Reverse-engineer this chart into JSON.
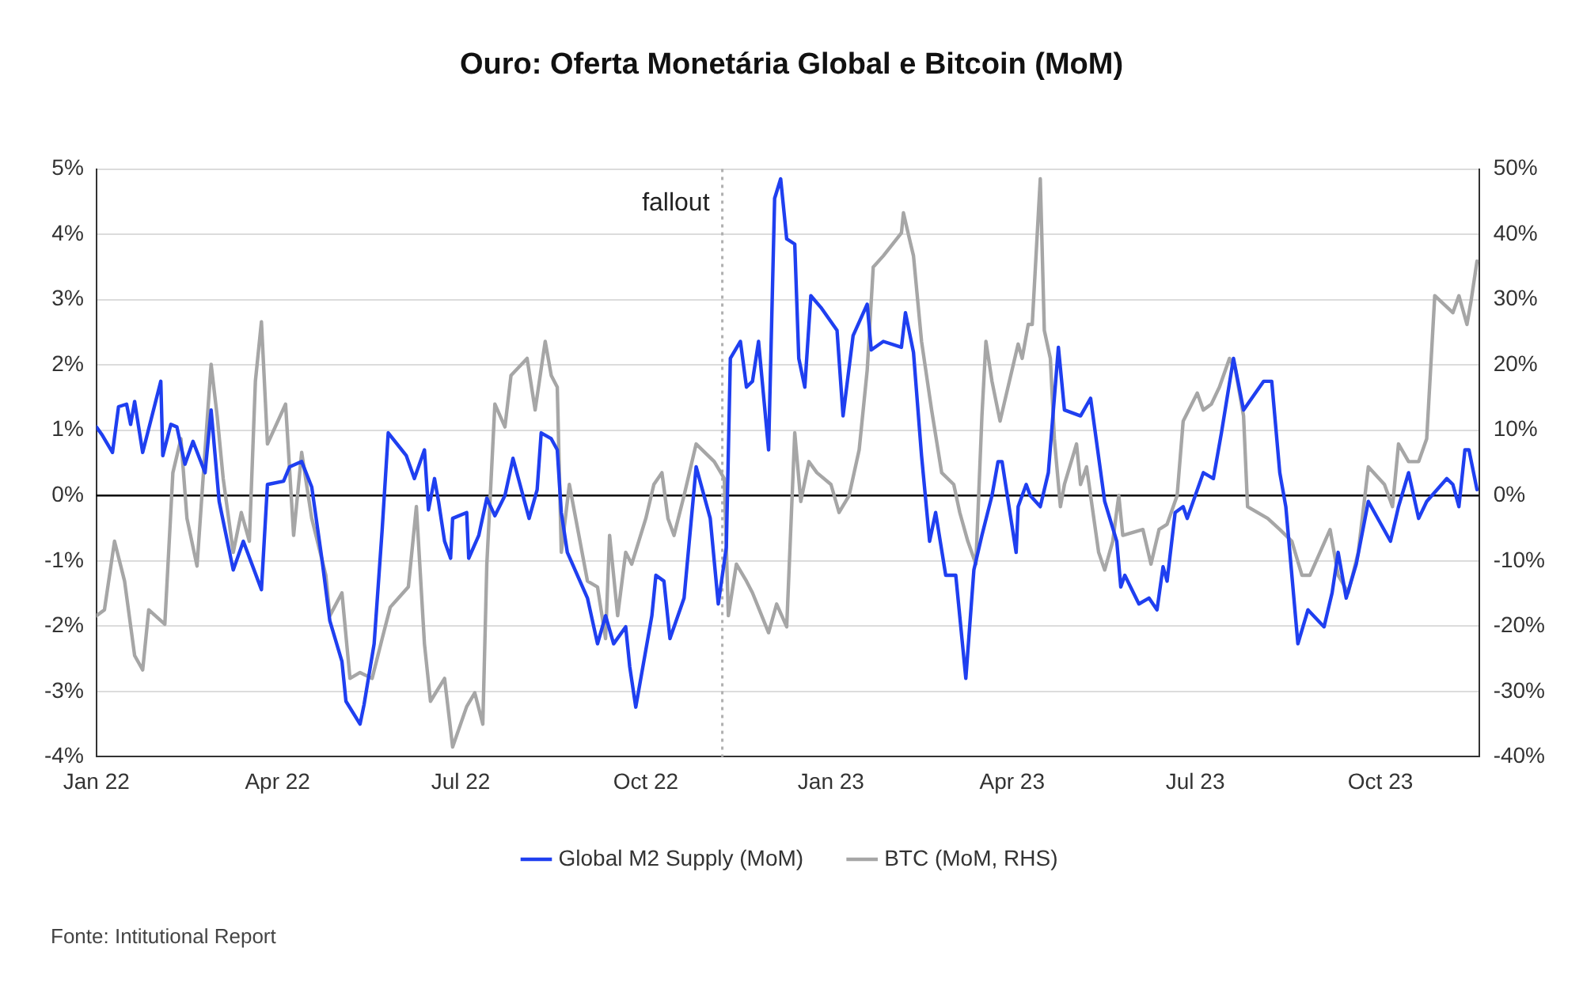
{
  "chart_data": {
    "type": "line",
    "title": "Ouro: Oferta Monetária Global e Bitcoin (MoM)",
    "xlim": [
      "2022-01-01",
      "2023-11-19"
    ],
    "xticks": [
      {
        "value": "2022-01",
        "label": "Jan 22"
      },
      {
        "value": "2022-04",
        "label": "Apr 22"
      },
      {
        "value": "2022-07",
        "label": "Jul 22"
      },
      {
        "value": "2022-10",
        "label": "Oct 22"
      },
      {
        "value": "2023-01",
        "label": "Jan 23"
      },
      {
        "value": "2023-04",
        "label": "Apr 23"
      },
      {
        "value": "2023-07",
        "label": "Jul 23"
      },
      {
        "value": "2023-10",
        "label": "Oct 23"
      }
    ],
    "ylim": [
      -4,
      5
    ],
    "yticks": [
      {
        "value": -4,
        "label": "-4%"
      },
      {
        "value": -3,
        "label": "-3%"
      },
      {
        "value": -2,
        "label": "-2%"
      },
      {
        "value": -1,
        "label": "-1%"
      },
      {
        "value": 0,
        "label": "0%"
      },
      {
        "value": 1,
        "label": "1%"
      },
      {
        "value": 2,
        "label": "2%"
      },
      {
        "value": 3,
        "label": "3%"
      },
      {
        "value": 4,
        "label": "4%"
      },
      {
        "value": 5,
        "label": "5%"
      }
    ],
    "y2lim": [
      -40,
      50
    ],
    "y2ticks": [
      {
        "value": -40,
        "label": "-40%"
      },
      {
        "value": -30,
        "label": "-30%"
      },
      {
        "value": -20,
        "label": "-20%"
      },
      {
        "value": -10,
        "label": "-10%"
      },
      {
        "value": 0,
        "label": "0%"
      },
      {
        "value": 10,
        "label": "10%"
      },
      {
        "value": 20,
        "label": "20%"
      },
      {
        "value": 30,
        "label": "30%"
      },
      {
        "value": 40,
        "label": "40%"
      },
      {
        "value": 50,
        "label": "50%"
      }
    ],
    "grid": "y",
    "legend": "bottom",
    "marker": "none",
    "line_style": "solid",
    "series": [
      {
        "name": "Global M2 Supply (MoM)",
        "color": "#1f3ff0",
        "x": [
          "2022-01-01",
          "2022-01-04",
          "2022-01-09",
          "2022-01-12",
          "2022-01-16",
          "2022-01-18",
          "2022-01-20",
          "2022-01-24",
          "2022-02-02",
          "2022-02-03",
          "2022-02-07",
          "2022-02-10",
          "2022-02-14",
          "2022-02-18",
          "2022-02-24",
          "2022-02-27",
          "2022-03-03",
          "2022-03-10",
          "2022-03-15",
          "2022-03-24",
          "2022-03-27",
          "2022-04-04",
          "2022-04-07",
          "2022-04-13",
          "2022-04-18",
          "2022-04-23",
          "2022-04-27",
          "2022-05-03",
          "2022-05-05",
          "2022-05-12",
          "2022-05-14",
          "2022-05-19",
          "2022-05-23",
          "2022-05-26",
          "2022-06-04",
          "2022-06-08",
          "2022-06-13",
          "2022-06-15",
          "2022-06-18",
          "2022-06-20",
          "2022-06-23",
          "2022-06-26",
          "2022-06-27",
          "2022-07-04",
          "2022-07-05",
          "2022-07-10",
          "2022-07-14",
          "2022-07-18",
          "2022-07-23",
          "2022-07-27",
          "2022-08-04",
          "2022-08-08",
          "2022-08-10",
          "2022-08-15",
          "2022-08-18",
          "2022-08-20",
          "2022-08-23",
          "2022-09-02",
          "2022-09-07",
          "2022-09-11",
          "2022-09-15",
          "2022-09-21",
          "2022-09-23",
          "2022-09-26",
          "2022-10-04",
          "2022-10-06",
          "2022-10-10",
          "2022-10-13",
          "2022-10-20",
          "2022-10-26",
          "2022-11-02",
          "2022-11-06",
          "2022-11-10",
          "2022-11-12",
          "2022-11-17",
          "2022-11-20",
          "2022-11-23",
          "2022-11-26",
          "2022-12-01",
          "2022-12-04",
          "2022-12-07",
          "2022-12-10",
          "2022-12-14",
          "2022-12-16",
          "2022-12-19",
          "2022-12-22",
          "2022-12-27",
          "2023-01-04",
          "2023-01-07",
          "2023-01-12",
          "2023-01-19",
          "2023-01-21",
          "2023-01-27",
          "2023-02-05",
          "2023-02-07",
          "2023-02-11",
          "2023-02-15",
          "2023-02-19",
          "2023-02-22",
          "2023-02-27",
          "2023-03-04",
          "2023-03-09",
          "2023-03-13",
          "2023-03-17",
          "2023-03-22",
          "2023-03-25",
          "2023-03-27",
          "2023-04-03",
          "2023-04-04",
          "2023-04-08",
          "2023-04-10",
          "2023-04-15",
          "2023-04-19",
          "2023-04-24",
          "2023-04-27",
          "2023-05-05",
          "2023-05-10",
          "2023-05-17",
          "2023-05-23",
          "2023-05-25",
          "2023-05-27",
          "2023-06-03",
          "2023-06-08",
          "2023-06-12",
          "2023-06-15",
          "2023-06-17",
          "2023-06-21",
          "2023-06-25",
          "2023-06-27",
          "2023-07-05",
          "2023-07-10",
          "2023-07-14",
          "2023-07-20",
          "2023-07-25",
          "2023-08-04",
          "2023-08-08",
          "2023-08-12",
          "2023-08-15",
          "2023-08-21",
          "2023-08-26",
          "2023-09-03",
          "2023-09-07",
          "2023-09-10",
          "2023-09-14",
          "2023-09-19",
          "2023-09-25",
          "2023-10-06",
          "2023-10-10",
          "2023-10-15",
          "2023-10-20",
          "2023-10-24",
          "2023-11-03",
          "2023-11-06",
          "2023-11-09",
          "2023-11-12",
          "2023-11-14",
          "2023-11-18"
        ],
        "values": [
          1.05,
          0.92,
          0.66,
          1.36,
          1.4,
          1.09,
          1.44,
          0.66,
          1.75,
          0.61,
          1.09,
          1.05,
          0.48,
          0.83,
          0.35,
          1.31,
          -0.09,
          -1.14,
          -0.7,
          -1.44,
          0.17,
          0.22,
          0.44,
          0.52,
          0.13,
          -0.96,
          -1.92,
          -2.54,
          -3.15,
          -3.5,
          -3.2,
          -2.27,
          -0.52,
          0.96,
          0.61,
          0.26,
          0.7,
          -0.22,
          0.26,
          -0.09,
          -0.7,
          -0.96,
          -0.35,
          -0.26,
          -0.96,
          -0.61,
          -0.04,
          -0.31,
          0,
          0.57,
          -0.35,
          0.09,
          0.96,
          0.87,
          0.7,
          -0.26,
          -0.87,
          -1.57,
          -2.27,
          -1.84,
          -2.27,
          -2.01,
          -2.62,
          -3.24,
          -1.84,
          -1.22,
          -1.31,
          -2.19,
          -1.57,
          0.44,
          -0.35,
          -1.66,
          -0.79,
          2.1,
          2.36,
          1.66,
          1.75,
          2.36,
          0.7,
          4.55,
          4.85,
          3.93,
          3.85,
          2.1,
          1.66,
          3.06,
          2.88,
          2.53,
          1.22,
          2.45,
          2.93,
          2.23,
          2.36,
          2.27,
          2.8,
          2.19,
          0.61,
          -0.7,
          -0.26,
          -1.22,
          -1.22,
          -2.8,
          -1.14,
          -0.61,
          0,
          0.52,
          0.52,
          -0.87,
          -0.17,
          0.17,
          0,
          -0.17,
          0.35,
          2.27,
          1.31,
          1.22,
          1.49,
          -0.09,
          -0.7,
          -1.4,
          -1.22,
          -1.66,
          -1.57,
          -1.75,
          -1.09,
          -1.31,
          -0.26,
          -0.17,
          -0.35,
          0.35,
          0.26,
          0.96,
          2.1,
          1.31,
          1.75,
          1.75,
          0.35,
          -0.17,
          -2.27,
          -1.75,
          -2.01,
          -1.49,
          -0.87,
          -1.57,
          -1.05,
          -0.09,
          -0.7,
          -0.17,
          0.35,
          -0.35,
          -0.09,
          0.26,
          0.17,
          -0.17,
          0.7,
          0.7,
          0.09
        ]
      },
      {
        "name": "BTC (MoM, RHS)",
        "color": "#a6a6a6",
        "axis": "y2",
        "x": [
          "2022-01-01",
          "2022-01-05",
          "2022-01-10",
          "2022-01-15",
          "2022-01-20",
          "2022-01-24",
          "2022-01-27",
          "2022-02-04",
          "2022-02-08",
          "2022-02-12",
          "2022-02-15",
          "2022-02-20",
          "2022-02-23",
          "2022-02-27",
          "2022-03-02",
          "2022-03-05",
          "2022-03-10",
          "2022-03-14",
          "2022-03-18",
          "2022-03-21",
          "2022-03-24",
          "2022-03-27",
          "2022-04-05",
          "2022-04-09",
          "2022-04-13",
          "2022-04-18",
          "2022-04-25",
          "2022-04-27",
          "2022-05-03",
          "2022-05-07",
          "2022-05-12",
          "2022-05-18",
          "2022-05-23",
          "2022-05-27",
          "2022-06-05",
          "2022-06-09",
          "2022-06-13",
          "2022-06-16",
          "2022-06-23",
          "2022-06-27",
          "2022-07-04",
          "2022-07-08",
          "2022-07-12",
          "2022-07-14",
          "2022-07-18",
          "2022-07-23",
          "2022-07-26",
          "2022-08-03",
          "2022-08-07",
          "2022-08-12",
          "2022-08-15",
          "2022-08-18",
          "2022-08-20",
          "2022-08-24",
          "2022-09-02",
          "2022-09-07",
          "2022-09-11",
          "2022-09-13",
          "2022-09-17",
          "2022-09-21",
          "2022-09-24",
          "2022-10-01",
          "2022-10-05",
          "2022-10-09",
          "2022-10-12",
          "2022-10-15",
          "2022-10-20",
          "2022-10-26",
          "2022-11-04",
          "2022-11-09",
          "2022-11-11",
          "2022-11-15",
          "2022-11-20",
          "2022-11-23",
          "2022-12-01",
          "2022-12-05",
          "2022-12-10",
          "2022-12-14",
          "2022-12-17",
          "2022-12-21",
          "2022-12-25",
          "2023-01-01",
          "2023-01-05",
          "2023-01-10",
          "2023-01-15",
          "2023-01-19",
          "2023-01-22",
          "2023-01-27",
          "2023-02-05",
          "2023-02-06",
          "2023-02-09",
          "2023-02-11",
          "2023-02-15",
          "2023-02-20",
          "2023-02-25",
          "2023-03-03",
          "2023-03-06",
          "2023-03-10",
          "2023-03-14",
          "2023-03-17",
          "2023-03-19",
          "2023-03-22",
          "2023-03-26",
          "2023-04-04",
          "2023-04-06",
          "2023-04-09",
          "2023-04-11",
          "2023-04-15",
          "2023-04-17",
          "2023-04-20",
          "2023-04-22",
          "2023-04-25",
          "2023-04-27",
          "2023-05-03",
          "2023-05-05",
          "2023-05-08",
          "2023-05-10",
          "2023-05-14",
          "2023-05-17",
          "2023-05-21",
          "2023-05-24",
          "2023-05-26",
          "2023-06-05",
          "2023-06-09",
          "2023-06-13",
          "2023-06-17",
          "2023-06-22",
          "2023-06-25",
          "2023-07-02",
          "2023-07-05",
          "2023-07-09",
          "2023-07-13",
          "2023-07-18",
          "2023-07-21",
          "2023-07-25",
          "2023-07-27",
          "2023-08-06",
          "2023-08-12",
          "2023-08-18",
          "2023-08-23",
          "2023-08-27",
          "2023-09-06",
          "2023-09-10",
          "2023-09-15",
          "2023-09-20",
          "2023-09-25",
          "2023-10-03",
          "2023-10-07",
          "2023-10-10",
          "2023-10-15",
          "2023-10-20",
          "2023-10-24",
          "2023-10-28",
          "2023-11-06",
          "2023-11-09",
          "2023-11-13",
          "2023-11-15",
          "2023-11-18"
        ],
        "values": [
          -18.4,
          -17.5,
          -7,
          -13.1,
          -24.5,
          -26.7,
          -17.5,
          -19.7,
          3.5,
          8.7,
          -3.5,
          -10.8,
          2.6,
          20.1,
          12.2,
          2.6,
          -8.7,
          -2.6,
          -7,
          17.5,
          26.6,
          7.9,
          14,
          -6.1,
          6.6,
          -3.5,
          -12.2,
          -18.4,
          -14.9,
          -28,
          -27.1,
          -28,
          -21.9,
          -17.1,
          -14,
          -1.7,
          -22.7,
          -31.5,
          -28,
          -38.5,
          -32.3,
          -30.2,
          -35,
          -10.5,
          14,
          10.5,
          18.4,
          21,
          13.1,
          23.6,
          18.4,
          16.6,
          -8.7,
          1.7,
          -13.1,
          -14,
          -21.9,
          -6.1,
          -18.4,
          -8.7,
          -10.5,
          -3.5,
          1.7,
          3.5,
          -3.5,
          -6.1,
          0,
          7.9,
          5.2,
          2.6,
          -18.4,
          -10.5,
          -13.1,
          -14.9,
          -21,
          -16.6,
          -20.1,
          9.6,
          -0.9,
          5.2,
          3.5,
          1.7,
          -2.6,
          0,
          7,
          19.2,
          35,
          36.7,
          40.2,
          43.3,
          39.3,
          36.7,
          23.6,
          13.1,
          3.5,
          1.7,
          -2.6,
          -7,
          -10.5,
          12.2,
          23.6,
          17.5,
          11.4,
          23.2,
          21,
          26.2,
          26.2,
          48.5,
          25.3,
          21,
          8.7,
          -1.7,
          1.7,
          7.9,
          1.7,
          4.4,
          0,
          -8.7,
          -11.4,
          -7,
          0,
          -6.1,
          -5.2,
          -10.5,
          -5.2,
          -4.4,
          0,
          11.4,
          15.7,
          13.1,
          14,
          16.6,
          21,
          19.2,
          12.2,
          -1.7,
          -3.5,
          -5.2,
          -7,
          -12.2,
          -12.2,
          -5.2,
          -12.2,
          -14.9,
          -8.7,
          4.4,
          1.7,
          -1.7,
          7.9,
          5.2,
          5.2,
          8.7,
          30.6,
          28,
          30.6,
          26.2,
          29.7,
          35.9
        ]
      }
    ],
    "ref_lines": [
      {
        "axis": "y",
        "value": 0,
        "color": "#000000",
        "line_style": "solid"
      },
      {
        "axis": "x",
        "value": "2022-11-08",
        "label": "fallout",
        "color": "#b0b0b0",
        "line_style": "dotted"
      }
    ],
    "annotations": [
      "Fonte: Intitutional Report"
    ]
  }
}
